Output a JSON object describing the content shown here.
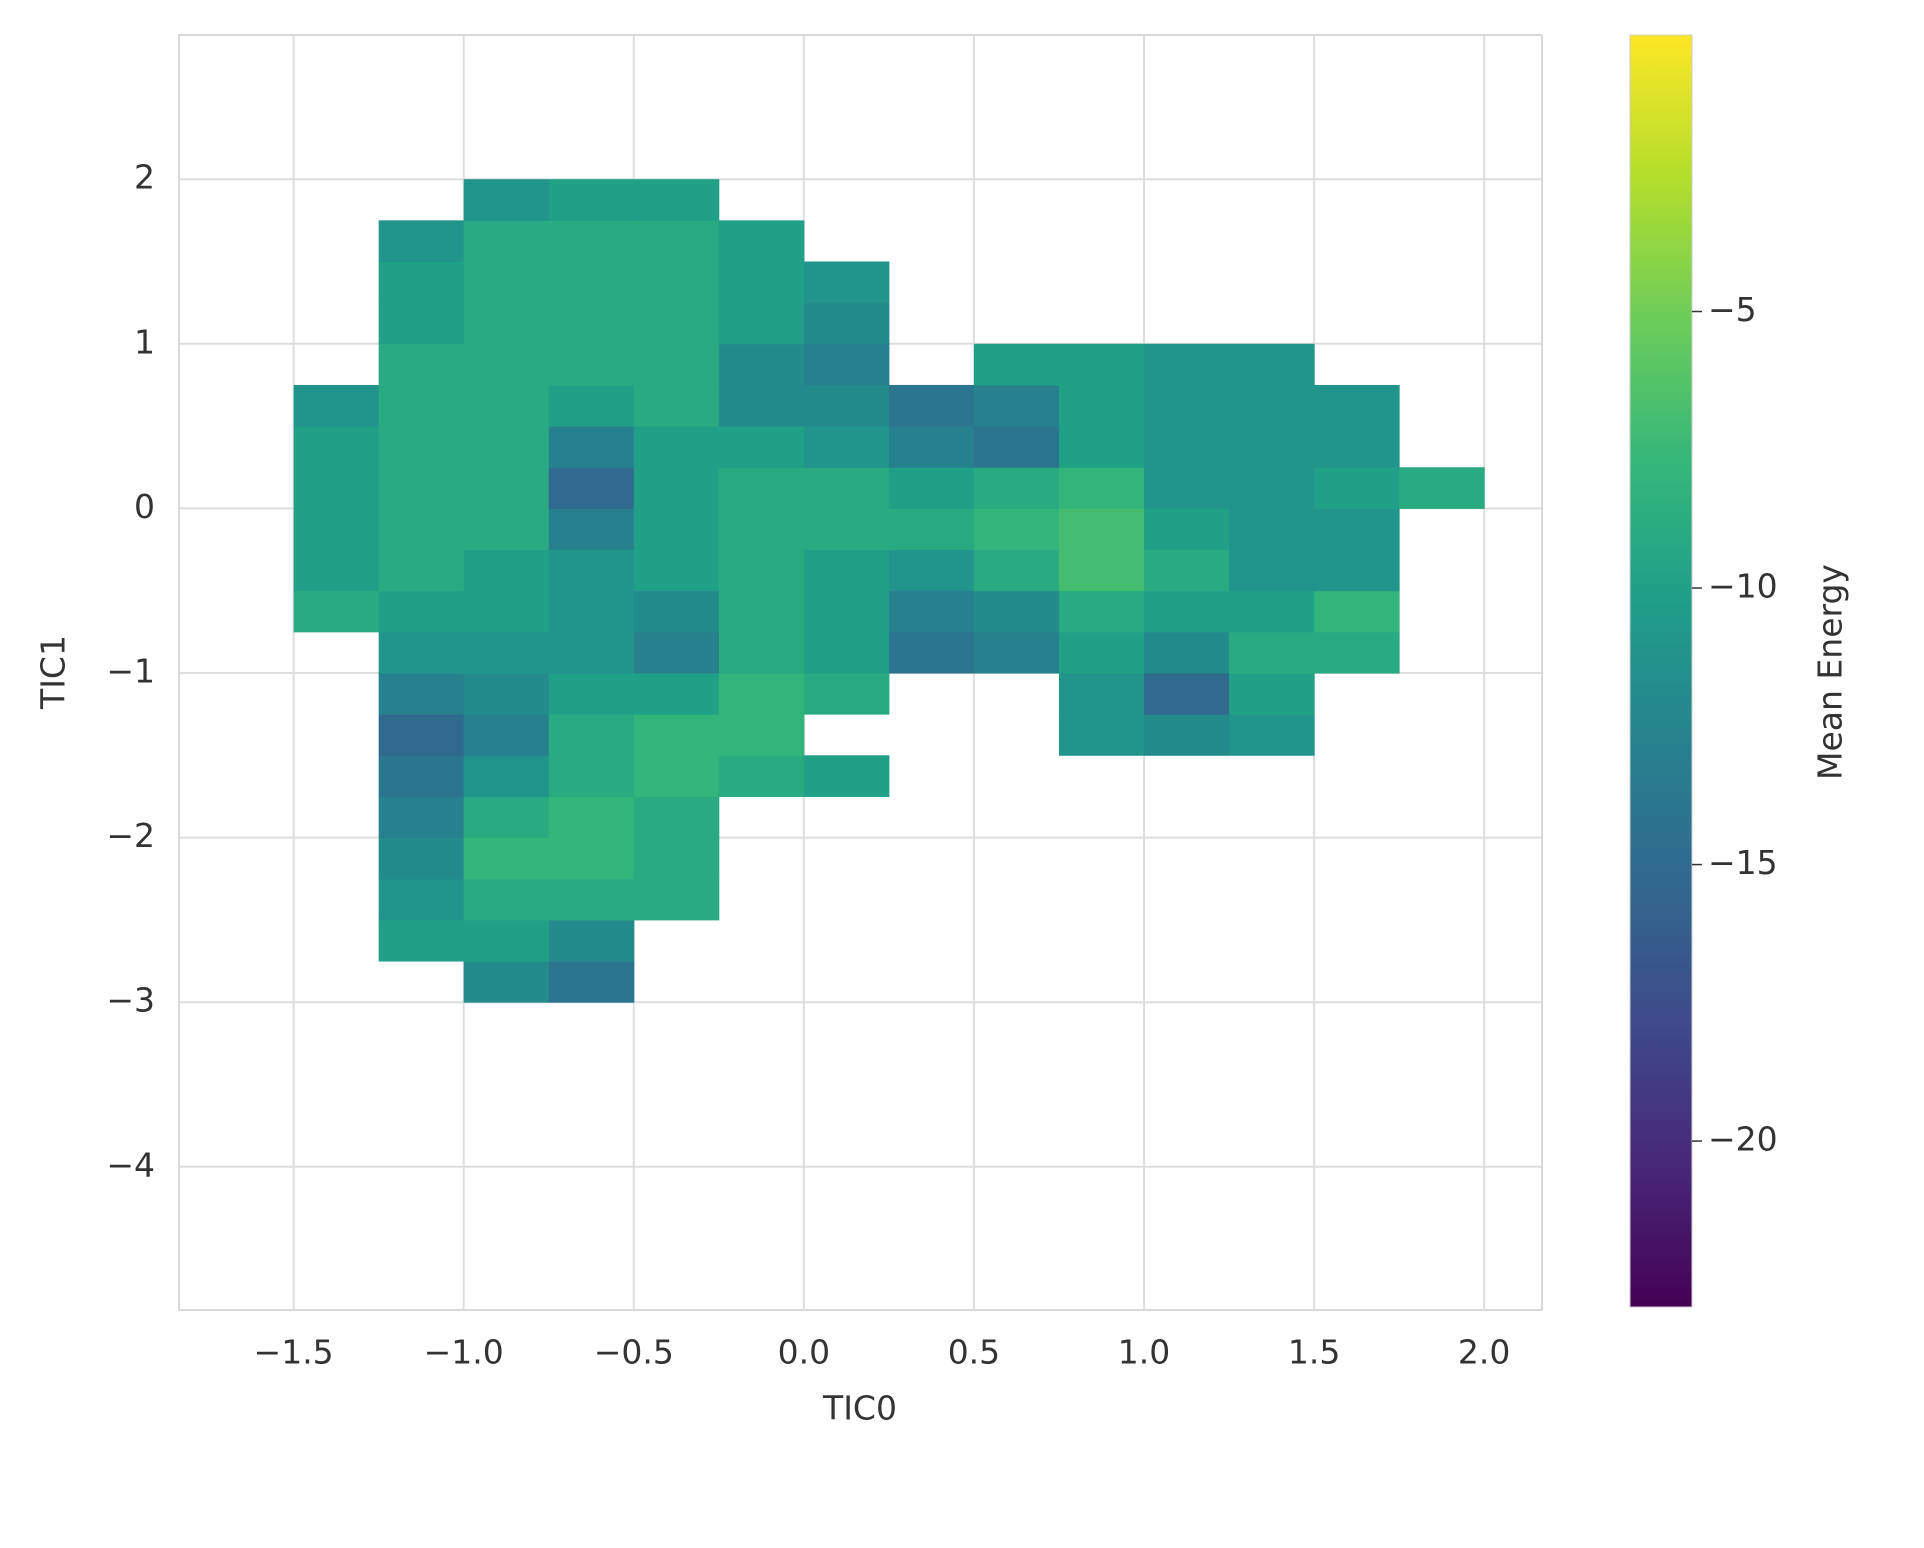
{
  "chart_data": {
    "type": "heatmap",
    "xlabel": "TIC0",
    "ylabel": "TIC1",
    "colorbar_label": "Mean Energy",
    "cmap": "viridis",
    "grid": true,
    "x_bins": [
      -1.5,
      -1.25,
      -1.0,
      -0.75,
      -0.5,
      -0.25,
      0.0,
      0.25,
      0.5,
      0.75,
      1.0,
      1.25,
      1.5,
      1.75,
      2.0
    ],
    "y_bins": [
      -3.0,
      -2.75,
      -2.5,
      -2.25,
      -2.0,
      -1.75,
      -1.5,
      -1.25,
      -1.0,
      -0.75,
      -0.5,
      -0.25,
      0.0,
      0.25,
      0.5,
      0.75,
      1.0,
      1.25,
      1.5,
      1.75,
      2.0
    ],
    "values": [
      [
        null,
        null,
        -12,
        -14,
        null,
        null,
        null,
        null,
        null,
        null,
        null,
        null,
        null,
        null
      ],
      [
        null,
        -10,
        -10,
        -12,
        null,
        null,
        null,
        null,
        null,
        null,
        null,
        null,
        null,
        null
      ],
      [
        null,
        -11,
        -9,
        -9,
        -9,
        null,
        null,
        null,
        null,
        null,
        null,
        null,
        null,
        null
      ],
      [
        null,
        -12,
        -8,
        -8,
        -9,
        null,
        null,
        null,
        null,
        null,
        null,
        null,
        null,
        null
      ],
      [
        null,
        -13,
        -9,
        -8,
        -9,
        null,
        null,
        null,
        null,
        null,
        null,
        null,
        null,
        null
      ],
      [
        null,
        -14,
        -11,
        -9,
        -8,
        -9,
        -10,
        null,
        null,
        null,
        null,
        null,
        null,
        null
      ],
      [
        null,
        -15,
        -13,
        -9,
        -8,
        -8,
        null,
        null,
        null,
        -11,
        -12,
        -11,
        null,
        null
      ],
      [
        null,
        -13,
        -12,
        -10,
        -10,
        -8,
        -9,
        null,
        null,
        -11,
        -15,
        -10,
        null,
        null
      ],
      [
        null,
        -11,
        -11,
        -11,
        -13,
        -9,
        -10,
        -14,
        -13,
        -10,
        -12,
        -9,
        -9,
        null
      ],
      [
        -9,
        -10,
        -10,
        -11,
        -12,
        -9,
        -10,
        -13,
        -12,
        -9,
        -10,
        -10,
        -8,
        null
      ],
      [
        -10,
        -9,
        -10,
        -11,
        -10,
        -9,
        -10,
        -11,
        -9,
        -7,
        -9,
        -11,
        -11,
        null
      ],
      [
        -10,
        -9,
        -9,
        -13,
        -10,
        -9,
        -9,
        -9,
        -8,
        -7,
        -10,
        -11,
        -11,
        null
      ],
      [
        -10,
        -9,
        -9,
        -15,
        -10,
        -9,
        -9,
        -10,
        -9,
        -8,
        -11,
        -11,
        -10,
        -9
      ],
      [
        -10,
        -9,
        -9,
        -13,
        -10,
        -10,
        -11,
        -13,
        -14,
        -10,
        -11,
        -11,
        -11,
        null
      ],
      [
        -11,
        -9,
        -9,
        -10,
        -9,
        -12,
        -12,
        -14,
        -13,
        -10,
        -11,
        -11,
        -11,
        null
      ],
      [
        null,
        -9,
        -9,
        -9,
        -9,
        -12,
        -13,
        null,
        -10,
        -10,
        -11,
        -11,
        null,
        null
      ],
      [
        null,
        -10,
        -9,
        -9,
        -9,
        -10,
        -12,
        null,
        null,
        null,
        null,
        null,
        null,
        null
      ],
      [
        null,
        -10,
        -9,
        -9,
        -9,
        -10,
        -11,
        null,
        null,
        null,
        null,
        null,
        null,
        null
      ],
      [
        null,
        -11,
        -9,
        -9,
        -9,
        -10,
        null,
        null,
        null,
        null,
        null,
        null,
        null,
        null
      ],
      [
        null,
        null,
        -11,
        -10,
        -10,
        null,
        null,
        null,
        null,
        null,
        null,
        null,
        null,
        null
      ]
    ],
    "xlim": [
      -1.837,
      2.17
    ],
    "ylim": [
      -4.87,
      2.876
    ],
    "clim": [
      -23,
      0
    ],
    "xticks": [
      {
        "value": -1.5,
        "label": "−1.5"
      },
      {
        "value": -1.0,
        "label": "−1.0"
      },
      {
        "value": -0.5,
        "label": "−0.5"
      },
      {
        "value": 0.0,
        "label": "0.0"
      },
      0.5,
      {
        "value": 1.0,
        "label": "1.0"
      },
      1.5,
      {
        "value": 2.0,
        "label": "2.0"
      }
    ],
    "yticks": [
      {
        "value": -4,
        "label": "−4"
      },
      {
        "value": -3,
        "label": "−3"
      },
      {
        "value": -2,
        "label": "−2"
      },
      {
        "value": -1,
        "label": "−1"
      },
      0,
      1,
      2
    ],
    "cticks": [
      {
        "value": -20,
        "label": "−20"
      },
      {
        "value": -15,
        "label": "−15"
      },
      {
        "value": -10,
        "label": "−10"
      },
      {
        "value": -5,
        "label": "−5"
      }
    ]
  }
}
